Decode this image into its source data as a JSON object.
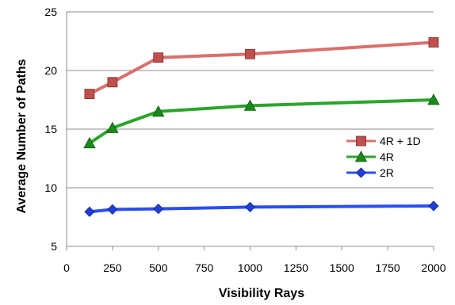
{
  "chart_data": {
    "type": "line",
    "xlabel": "Visibility Rays",
    "ylabel": "Average Number of Paths",
    "xlim": [
      0,
      2000
    ],
    "ylim": [
      5,
      25
    ],
    "xticks": [
      0,
      250,
      500,
      750,
      1000,
      1250,
      1500,
      1750,
      2000
    ],
    "yticks": [
      5,
      10,
      15,
      20,
      25
    ],
    "grid": "horizontal",
    "legend_position": "right",
    "series": [
      {
        "name": "4R + 1D",
        "color": "#c0504d",
        "line_color": "#d9706b",
        "marker": "square",
        "x": [
          125,
          250,
          500,
          1000,
          2000
        ],
        "y": [
          18.0,
          19.0,
          21.1,
          21.4,
          22.4
        ]
      },
      {
        "name": "4R",
        "color": "#1a8a1a",
        "line_color": "#2aa52a",
        "marker": "triangle",
        "x": [
          125,
          250,
          500,
          1000,
          2000
        ],
        "y": [
          13.8,
          15.1,
          16.5,
          17.0,
          17.5
        ]
      },
      {
        "name": "2R",
        "color": "#1f3fd6",
        "line_color": "#2a4ff0",
        "marker": "diamond",
        "x": [
          125,
          250,
          500,
          1000,
          2000
        ],
        "y": [
          7.95,
          8.15,
          8.2,
          8.35,
          8.45
        ]
      }
    ]
  }
}
